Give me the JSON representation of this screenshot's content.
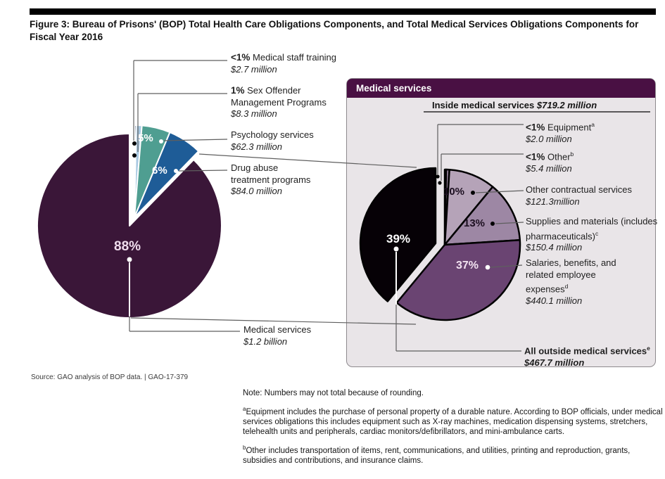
{
  "header": {
    "title": "Figure 3: Bureau of Prisons' (BOP) Total Health Care Obligations Components, and Total Medical Services Obligations Components for Fiscal Year 2016"
  },
  "chart_data": [
    {
      "id": "total-health-care-obligations",
      "type": "pie",
      "legend_position": "callouts",
      "slices": [
        {
          "pct_label": "<1%",
          "pct": 0.3,
          "label": "Medical staff training",
          "amount": "$2.7 million",
          "color": "#1f3a5f"
        },
        {
          "pct_label": "1%",
          "pct": 1,
          "label": "Sex Offender Management Programs",
          "amount": "$8.3 million",
          "color": "#a9c9e2"
        },
        {
          "pct_label": "5%",
          "pct": 5,
          "label": "Psychology services",
          "amount": "$62.3 million",
          "color": "#4f9e91"
        },
        {
          "pct_label": "6%",
          "pct": 6,
          "label": "Drug abuse treatment programs",
          "amount": "$84.0 million",
          "color": "#1e5c97"
        },
        {
          "pct_label": "88%",
          "pct": 88,
          "label": "Medical services",
          "amount": "$1.2 billion",
          "color": "#3a1638"
        }
      ]
    },
    {
      "id": "medical-services-obligations",
      "type": "pie",
      "panel_title": "Medical services",
      "inside_label": "Inside medical services",
      "inside_amount": "$719.2 million",
      "slices": [
        {
          "pct_label": "<1%",
          "pct": 0.3,
          "label": "Equipment",
          "sup": "a",
          "amount": "$2.0 million",
          "color": "#d9d2da"
        },
        {
          "pct_label": "<1%",
          "pct": 0.7,
          "label": "Other",
          "sup": "b",
          "amount": "$5.4 million",
          "color": "#8d7a91"
        },
        {
          "pct_label": "10%",
          "pct": 10,
          "label": "Other contractual services",
          "amount": "$121.3million",
          "color": "#b5a3b8"
        },
        {
          "pct_label": "13%",
          "pct": 13,
          "label": "Supplies and materials (includes pharmaceuticals)",
          "sup": "c",
          "amount": "$150.4 million",
          "color": "#9d87a4"
        },
        {
          "pct_label": "37%",
          "pct": 37,
          "label": "Salaries, benefits, and related employee expenses",
          "sup": "d",
          "amount": "$440.1 million",
          "color": "#6a4472"
        },
        {
          "pct_label": "39%",
          "pct": 39,
          "label": "All outside medical services",
          "sup": "e",
          "amount": "$467.7 million",
          "color": "#060106"
        }
      ]
    }
  ],
  "source_line": "Source: GAO analysis of BOP data.  |  GAO-17-379",
  "note": "Note: Numbers may not total because of rounding.",
  "footnotes": [
    {
      "sup": "a",
      "text": "Equipment includes the purchase of personal property of a durable nature. According to BOP officials, under medical services obligations this includes equipment such as X-ray machines, medication dispensing systems, stretchers, telehealth units and peripherals, cardiac monitors/defibrillators, and mini-ambulance carts."
    },
    {
      "sup": "b",
      "text": "Other includes transportation of items, rent, communications, and utilities, printing and reproduction, grants, subsidies and contributions, and insurance claims."
    }
  ]
}
